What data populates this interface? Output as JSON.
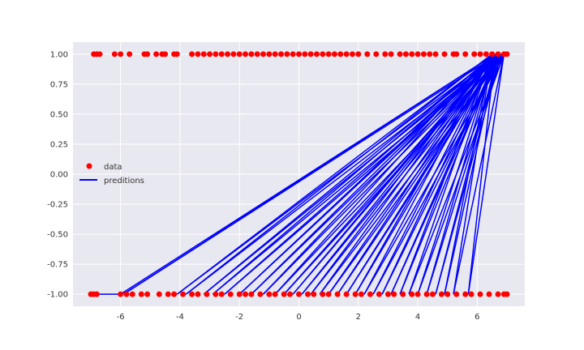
{
  "chart_data": {
    "type": "scatter",
    "title": "",
    "xlabel": "",
    "ylabel": "",
    "xlim": [
      -7.6,
      7.6
    ],
    "ylim": [
      -1.1,
      1.1
    ],
    "grid": true,
    "background": "#e8e8f0",
    "grid_color": "#ffffff",
    "legend_position": "center-left",
    "x_ticks": [
      -6,
      -4,
      -2,
      0,
      2,
      4,
      6
    ],
    "x_tick_labels": [
      "-6",
      "-4",
      "-2",
      "0",
      "2",
      "4",
      "6"
    ],
    "y_ticks": [
      1.0,
      0.75,
      0.5,
      0.25,
      0.0,
      -0.25,
      -0.5,
      -0.75,
      -1.0
    ],
    "y_tick_labels": [
      "1.00",
      "0.75",
      "0.50",
      "0.25",
      "0.00",
      "-0.25",
      "-0.50",
      "-0.75",
      "-1.00"
    ],
    "series": [
      {
        "name": "data",
        "kind": "scatter",
        "color": "#ff0000",
        "points_top_y": 1.0,
        "points_top_x": [
          -6.9,
          -6.8,
          -6.7,
          -6.2,
          -6.0,
          -5.7,
          -5.2,
          -5.1,
          -4.8,
          -4.6,
          -4.5,
          -4.2,
          -4.1,
          -3.6,
          -3.4,
          -3.2,
          -3.0,
          -2.8,
          -2.6,
          -2.4,
          -2.2,
          -2.0,
          -1.8,
          -1.6,
          -1.4,
          -1.2,
          -1.0,
          -0.8,
          -0.6,
          -0.4,
          -0.2,
          0.0,
          0.2,
          0.4,
          0.6,
          0.8,
          1.0,
          1.2,
          1.4,
          1.6,
          1.8,
          2.0,
          2.3,
          2.6,
          2.9,
          3.1,
          3.4,
          3.6,
          3.8,
          4.0,
          4.2,
          4.4,
          4.6,
          4.9,
          5.2,
          5.3,
          5.6,
          5.9,
          6.1,
          6.3,
          6.5,
          6.7,
          6.9,
          7.0
        ],
        "points_bottom_y": -1.0,
        "points_bottom_x": [
          -7.0,
          -6.9,
          -6.8,
          -6.0,
          -5.8,
          -5.6,
          -5.3,
          -5.1,
          -4.7,
          -4.4,
          -4.2,
          -3.9,
          -3.6,
          -3.4,
          -3.1,
          -2.8,
          -2.6,
          -2.3,
          -2.0,
          -1.8,
          -1.6,
          -1.3,
          -1.0,
          -0.8,
          -0.5,
          -0.3,
          0.0,
          0.3,
          0.5,
          0.8,
          1.0,
          1.3,
          1.6,
          1.9,
          2.1,
          2.4,
          2.7,
          3.0,
          3.2,
          3.5,
          3.8,
          4.0,
          4.3,
          4.5,
          4.8,
          5.0,
          5.3,
          5.6,
          5.8,
          6.1,
          6.4,
          6.7,
          6.9,
          7.0
        ]
      },
      {
        "name": "preditions",
        "kind": "line",
        "color": "#0000ff",
        "note_points": "line path connects predictions in data order",
        "path": [
          [
            -7.0,
            -1.0
          ],
          [
            -6.0,
            -1.0
          ],
          [
            6.6,
            1.0
          ],
          [
            -5.9,
            -1.0
          ],
          [
            6.7,
            1.0
          ],
          [
            -4.1,
            -1.0
          ],
          [
            6.5,
            1.0
          ],
          [
            -3.8,
            -1.0
          ],
          [
            6.8,
            1.0
          ],
          [
            -3.2,
            -1.0
          ],
          [
            6.6,
            1.0
          ],
          [
            -2.9,
            -1.0
          ],
          [
            6.9,
            1.0
          ],
          [
            -2.5,
            -1.0
          ],
          [
            6.7,
            1.0
          ],
          [
            -2.0,
            -1.0
          ],
          [
            6.6,
            1.0
          ],
          [
            -1.6,
            -1.0
          ],
          [
            6.8,
            1.0
          ],
          [
            -1.2,
            -1.0
          ],
          [
            6.5,
            1.0
          ],
          [
            -0.8,
            -1.0
          ],
          [
            6.9,
            1.0
          ],
          [
            -0.5,
            -1.0
          ],
          [
            6.7,
            1.0
          ],
          [
            -0.2,
            -1.0
          ],
          [
            6.6,
            1.0
          ],
          [
            0.1,
            -1.0
          ],
          [
            6.8,
            1.0
          ],
          [
            0.4,
            -1.0
          ],
          [
            6.5,
            1.0
          ],
          [
            0.7,
            -1.0
          ],
          [
            6.9,
            1.0
          ],
          [
            1.0,
            -1.0
          ],
          [
            6.6,
            1.0
          ],
          [
            1.3,
            -1.0
          ],
          [
            6.8,
            1.0
          ],
          [
            1.6,
            -1.0
          ],
          [
            6.7,
            1.0
          ],
          [
            1.9,
            -1.0
          ],
          [
            6.5,
            1.0
          ],
          [
            2.2,
            -1.0
          ],
          [
            6.9,
            1.0
          ],
          [
            2.5,
            -1.0
          ],
          [
            6.6,
            1.0
          ],
          [
            2.8,
            -1.0
          ],
          [
            6.8,
            1.0
          ],
          [
            3.1,
            -1.0
          ],
          [
            6.7,
            1.0
          ],
          [
            3.4,
            -1.0
          ],
          [
            6.5,
            1.0
          ],
          [
            3.7,
            -1.0
          ],
          [
            6.9,
            1.0
          ],
          [
            4.0,
            -1.0
          ],
          [
            6.6,
            1.0
          ],
          [
            4.3,
            -1.0
          ],
          [
            6.8,
            1.0
          ],
          [
            4.6,
            -1.0
          ],
          [
            6.7,
            1.0
          ],
          [
            4.9,
            -1.0
          ],
          [
            6.5,
            1.0
          ],
          [
            5.2,
            -1.0
          ],
          [
            6.9,
            1.0
          ],
          [
            5.7,
            -1.0
          ],
          [
            6.6,
            1.0
          ]
        ]
      }
    ],
    "legend": [
      {
        "label": "data",
        "marker": "circle",
        "color": "#ff0000"
      },
      {
        "label": "preditions",
        "marker": "line",
        "color": "#0000ff"
      }
    ]
  }
}
